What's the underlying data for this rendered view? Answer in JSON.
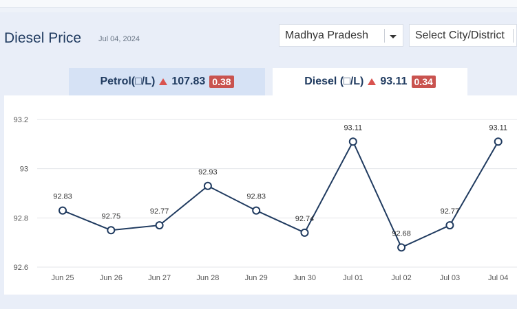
{
  "header": {
    "title": "Diesel Price",
    "date": "Jul 04, 2024",
    "state_select": "Madhya Pradesh",
    "city_select": "Select City/District"
  },
  "tabs": [
    {
      "label": "Petrol(□/L)",
      "price": "107.83",
      "change": "0.38",
      "active": false
    },
    {
      "label": "Diesel (□/L)",
      "price": "93.11",
      "change": "0.34",
      "active": true
    }
  ],
  "colors": {
    "line": "#1f3a5f",
    "up_arrow": "#d9534f",
    "badge": "#c9534f"
  },
  "chart_data": {
    "type": "line",
    "categories": [
      "Jun 25",
      "Jun 26",
      "Jun 27",
      "Jun 28",
      "Jun 29",
      "Jun 30",
      "Jul 01",
      "Jul 02",
      "Jul 03",
      "Jul 04"
    ],
    "values": [
      92.83,
      92.75,
      92.77,
      92.93,
      92.83,
      92.74,
      93.11,
      92.68,
      92.77,
      93.11
    ],
    "data_labels": [
      "92.83",
      "92.75",
      "92.77",
      "92.93",
      "92.83",
      "92.74",
      "93.11",
      "92.68",
      "92.77",
      "93.11"
    ],
    "yticks": [
      92.6,
      92.8,
      93,
      93.2
    ],
    "ytick_labels": [
      "92.6",
      "92.8",
      "93",
      "93.2"
    ],
    "ylim": [
      92.6,
      93.2
    ],
    "grid": true,
    "legend": "none"
  }
}
